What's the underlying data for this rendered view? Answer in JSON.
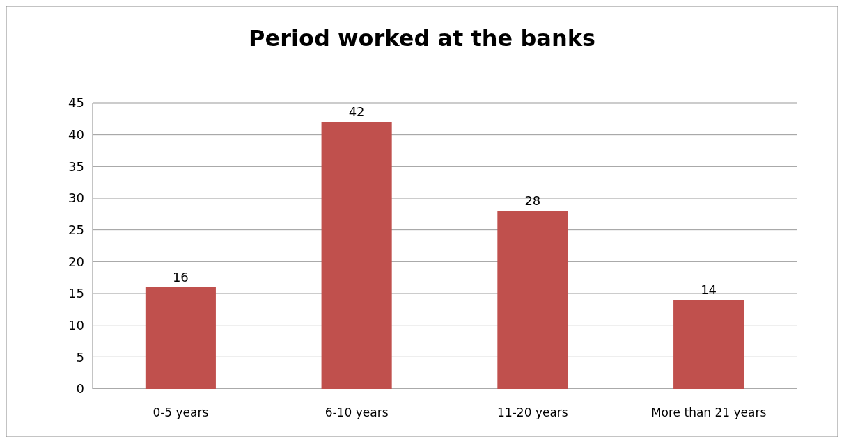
{
  "chart_data": {
    "type": "bar",
    "title": "Period worked at the banks",
    "categories": [
      "0-5 years",
      "6-10 years",
      "11-20 years",
      "More than 21 years"
    ],
    "values": [
      16,
      42,
      28,
      14
    ],
    "color": "#c0504d",
    "ylim": [
      0,
      45
    ],
    "yticks": [
      0,
      5,
      10,
      15,
      20,
      25,
      30,
      35,
      40,
      45
    ],
    "grid": "y",
    "data_labels": true
  }
}
